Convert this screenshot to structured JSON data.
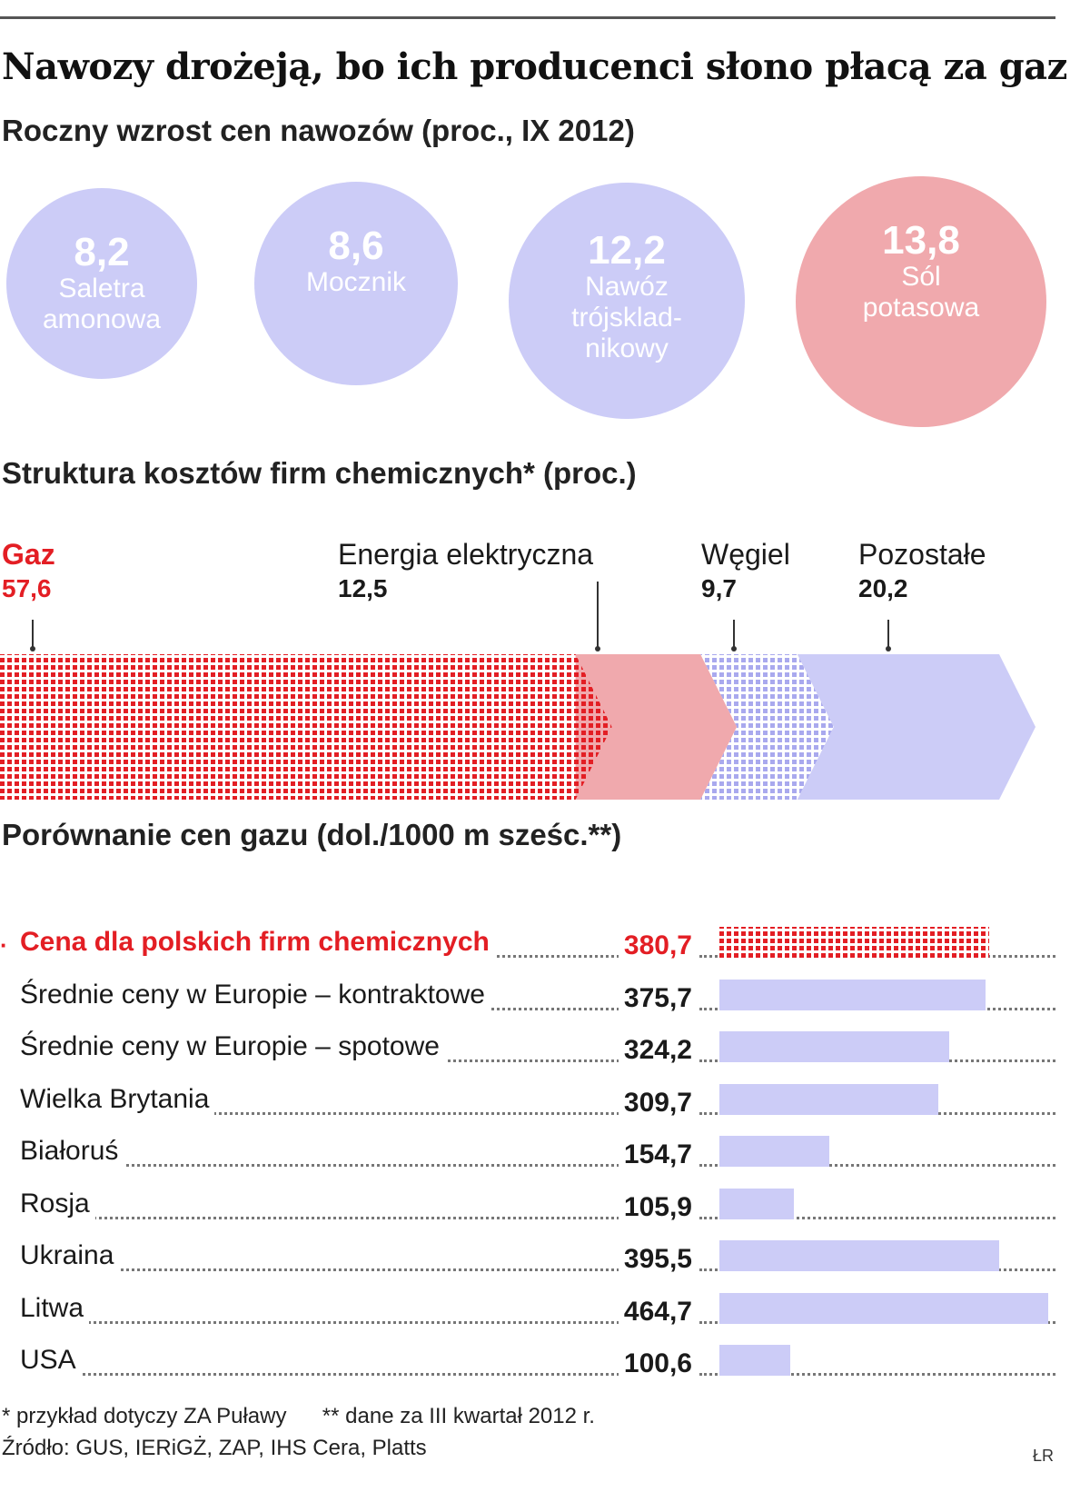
{
  "title": "Nawozy drożeją, bo ich producenci słono płacą za gaz",
  "colors": {
    "accent_red": "#e31e24",
    "pink": "#f0a9ad",
    "lavender": "#ccccf7"
  },
  "section1": {
    "subtitle": "Roczny wzrost cen nawozów (proc., IX 2012)"
  },
  "section2": {
    "subtitle": "Struktura kosztów firm chemicznych* (proc.)"
  },
  "section3": {
    "subtitle": "Porównanie cen gazu (dol./1000 m sześc.**)"
  },
  "chart_data": [
    {
      "type": "bubble",
      "items": [
        {
          "value": "8,2",
          "label": "Saletra\namonowa",
          "color": "#ccccf7"
        },
        {
          "value": "8,6",
          "label": "Mocznik",
          "color": "#ccccf7"
        },
        {
          "value": "12,2",
          "label": "Nawóz\ntrójsklad-\nnikowy",
          "color": "#ccccf7"
        },
        {
          "value": "13,8",
          "label": "Sól\npotasowa",
          "color": "#f0a9ad"
        }
      ]
    },
    {
      "type": "bar",
      "orientation": "horizontal-stacked",
      "segments": [
        {
          "name": "Gaz",
          "label": "57,6",
          "value": 57.6,
          "color": "#e31e24",
          "pattern": "grid"
        },
        {
          "name": "Energia elektryczna",
          "label": "12,5",
          "value": 12.5,
          "color": "#f0a9ad",
          "pattern": "solid"
        },
        {
          "name": "Węgiel",
          "label": "9,7",
          "value": 9.7,
          "color": "#ccccf7",
          "pattern": "grid"
        },
        {
          "name": "Pozostałe",
          "label": "20,2",
          "value": 20.2,
          "color": "#ccccf7",
          "pattern": "solid"
        }
      ]
    },
    {
      "type": "bar",
      "orientation": "horizontal",
      "unit": "dol./1000 m sześc.",
      "rows": [
        {
          "label": "Cena dla polskich firm chemicznych",
          "display": "380,7",
          "value": 380.7,
          "highlight": true
        },
        {
          "label": "Średnie ceny w Europie – kontraktowe",
          "display": "375,7",
          "value": 375.7
        },
        {
          "label": "Średnie ceny w Europie – spotowe",
          "display": "324,2",
          "value": 324.2
        },
        {
          "label": "Wielka Brytania",
          "display": "309,7",
          "value": 309.7
        },
        {
          "label": "Białoruś",
          "display": "154,7",
          "value": 154.7
        },
        {
          "label": "Rosja",
          "display": "105,9",
          "value": 105.9
        },
        {
          "label": "Ukraina",
          "display": "395,5",
          "value": 395.5
        },
        {
          "label": "Litwa",
          "display": "464,7",
          "value": 464.7
        },
        {
          "label": "USA",
          "display": "100,6",
          "value": 100.6
        }
      ]
    }
  ],
  "footnotes": {
    "note1": "* przykład dotyczy ZA Puławy",
    "note2": "** dane za III kwartał 2012 r.",
    "source": "Źródło: GUS, IERiGŻ, ZAP, IHS Cera, Platts",
    "credit": "ŁR"
  }
}
